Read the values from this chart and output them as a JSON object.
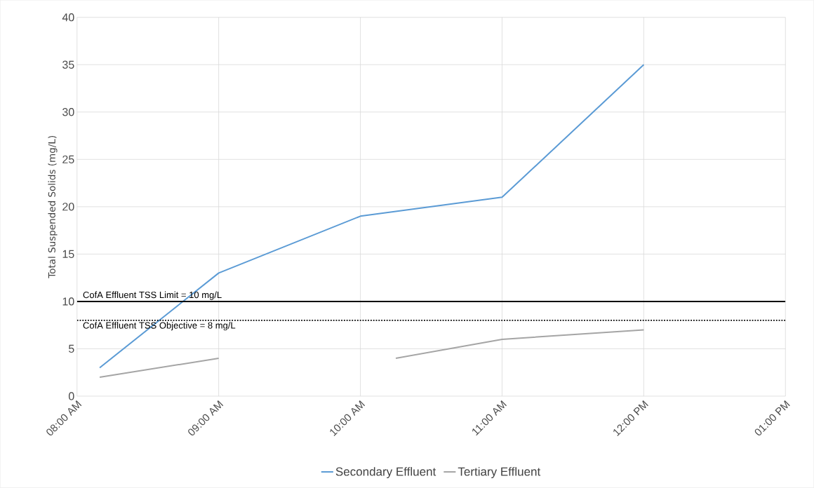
{
  "chart_data": {
    "type": "line",
    "ylabel": "Total Suspended Solids (mg/L)",
    "xlim": [
      8,
      13
    ],
    "xticks": [
      {
        "value": 8,
        "label": "08:00 AM"
      },
      {
        "value": 9,
        "label": "09:00 AM"
      },
      {
        "value": 10,
        "label": "10:00 AM"
      },
      {
        "value": 11,
        "label": "11:00 AM"
      },
      {
        "value": 12,
        "label": "12:00 PM"
      },
      {
        "value": 13,
        "label": "01:00 PM"
      }
    ],
    "ylim": [
      0,
      40
    ],
    "yticks": [
      0,
      5,
      10,
      15,
      20,
      25,
      30,
      35,
      40
    ],
    "grid": true,
    "legend": "bottom",
    "marker": "none",
    "line_style": "solid",
    "series": [
      {
        "name": "Secondary Effluent",
        "color": "#5b9bd5",
        "x": [
          8.16,
          9,
          10,
          11,
          12
        ],
        "values": [
          3,
          13,
          19,
          21,
          35
        ]
      },
      {
        "name": "Tertiary Effluent",
        "color": "#a5a5a5",
        "x": [
          8.16,
          9,
          10,
          10.25,
          11,
          12
        ],
        "values": [
          2,
          4,
          null,
          4,
          6,
          7
        ]
      }
    ],
    "ref_lines": [
      {
        "axis": "y",
        "value": 10,
        "label": "CofA Effluent TSS Limit = 10 mg/L",
        "color": "#000000",
        "line_style": "solid"
      },
      {
        "axis": "y",
        "value": 8,
        "label": "CofA Effluent TSS Objective = 8 mg/L",
        "color": "#000000",
        "line_style": "dotted"
      }
    ]
  }
}
